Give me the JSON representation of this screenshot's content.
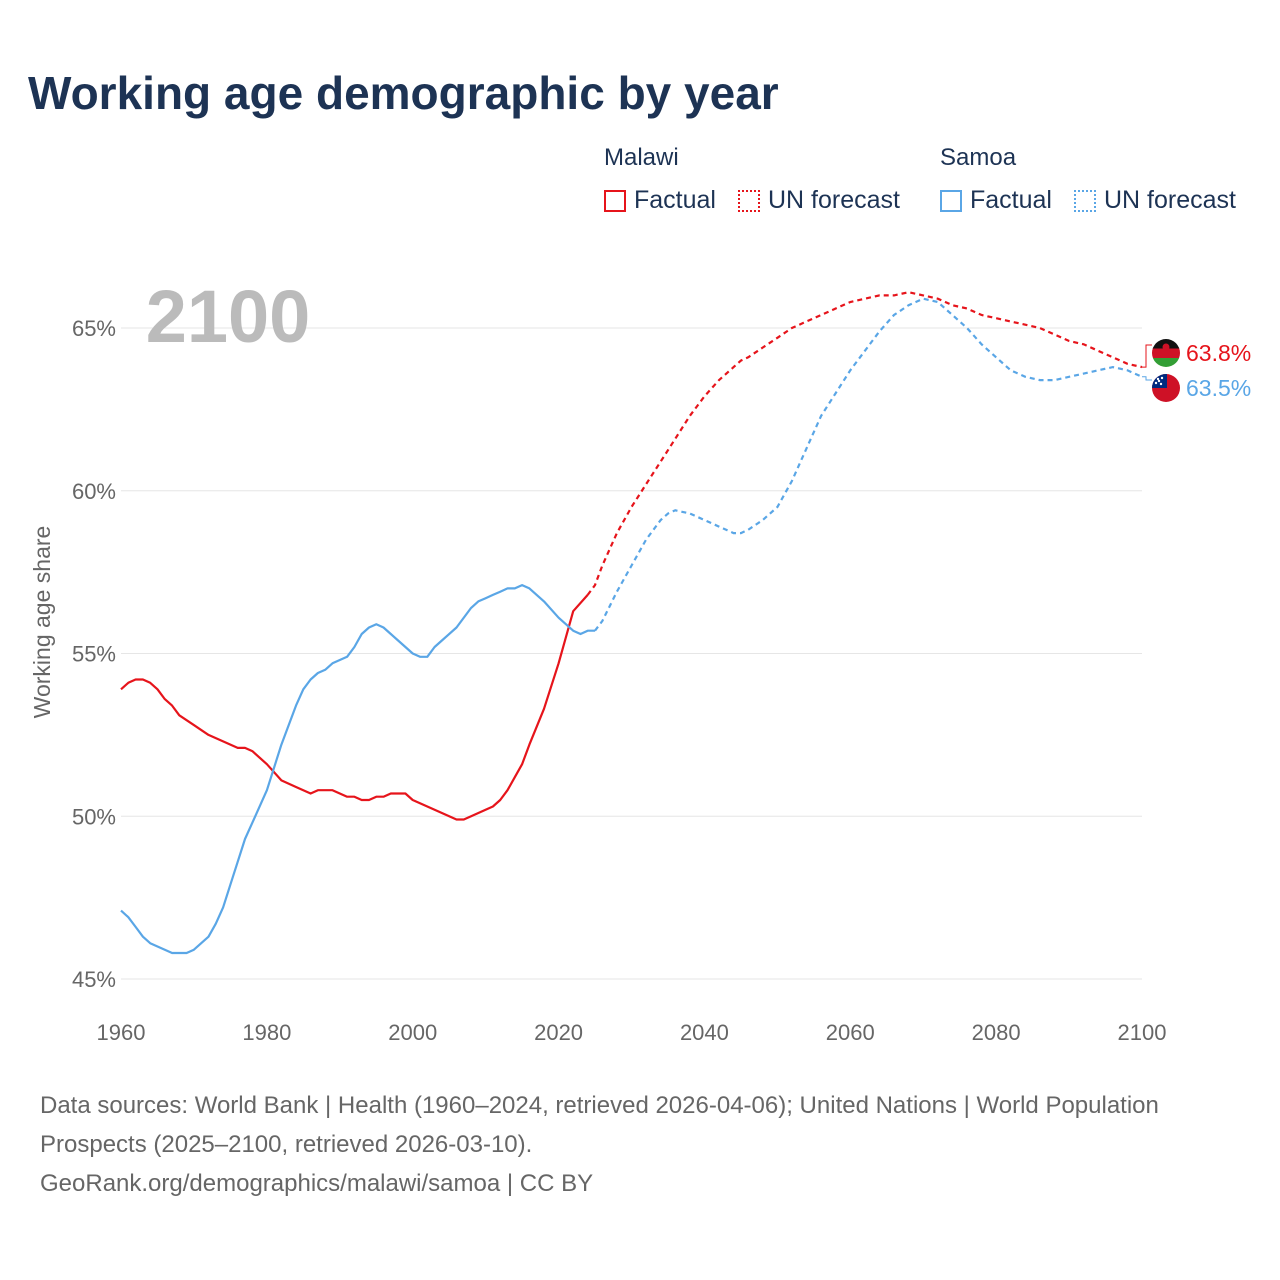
{
  "title": "Working age demographic by year",
  "legend": {
    "groups": [
      {
        "name": "Malawi",
        "color": "#e6141b",
        "factual_label": "Factual",
        "forecast_label": "UN forecast"
      },
      {
        "name": "Samoa",
        "color": "#5aa6e6",
        "factual_label": "Factual",
        "forecast_label": "UN forecast"
      }
    ]
  },
  "footer": {
    "sources": "Data sources: World Bank | Health (1960–2024, retrieved 2026-04-06); United Nations | World Population Prospects (2025–2100, retrieved 2026-03-10).",
    "link": "GeoRank.org/demographics/malawi/samoa | CC BY"
  },
  "chart_data": {
    "type": "line",
    "title": "Working age demographic by year",
    "year_watermark": "2100",
    "ylabel": "Working age share",
    "xlabel": "",
    "xlim": [
      1960,
      2100
    ],
    "ylim": [
      45,
      65
    ],
    "x_ticks": [
      "1960",
      "1980",
      "2000",
      "2020",
      "2040",
      "2060",
      "2080",
      "2100"
    ],
    "y_ticks": [
      "45%",
      "50%",
      "55%",
      "60%",
      "65%"
    ],
    "y_tick_values": [
      45,
      50,
      55,
      60,
      65
    ],
    "x_tick_values": [
      1960,
      1980,
      2000,
      2020,
      2040,
      2060,
      2080,
      2100
    ],
    "series": [
      {
        "name": "Malawi",
        "color": "#e6141b",
        "end_label": "63.8%",
        "flag_icon": "malawi-flag-icon",
        "factual": {
          "x": [
            1960,
            1961,
            1962,
            1963,
            1964,
            1965,
            1966,
            1967,
            1968,
            1970,
            1972,
            1974,
            1976,
            1977,
            1978,
            1980,
            1982,
            1984,
            1986,
            1987,
            1988,
            1989,
            1990,
            1991,
            1992,
            1993,
            1994,
            1995,
            1996,
            1997,
            1998,
            1999,
            2000,
            2002,
            2004,
            2006,
            2007,
            2008,
            2010,
            2011,
            2012,
            2013,
            2014,
            2015,
            2016,
            2018,
            2020,
            2022,
            2024
          ],
          "y": [
            53.9,
            54.1,
            54.2,
            54.2,
            54.1,
            53.9,
            53.6,
            53.4,
            53.1,
            52.8,
            52.5,
            52.3,
            52.1,
            52.1,
            52.0,
            51.6,
            51.1,
            50.9,
            50.7,
            50.8,
            50.8,
            50.8,
            50.7,
            50.6,
            50.6,
            50.5,
            50.5,
            50.6,
            50.6,
            50.7,
            50.7,
            50.7,
            50.5,
            50.3,
            50.1,
            49.9,
            49.9,
            50.0,
            50.2,
            50.3,
            50.5,
            50.8,
            51.2,
            51.6,
            52.2,
            53.3,
            54.7,
            56.3,
            56.8
          ]
        },
        "forecast": {
          "x": [
            2024,
            2025,
            2026,
            2028,
            2030,
            2032,
            2034,
            2036,
            2038,
            2040,
            2042,
            2044,
            2045,
            2046,
            2048,
            2050,
            2052,
            2054,
            2056,
            2058,
            2060,
            2062,
            2064,
            2066,
            2068,
            2070,
            2072,
            2074,
            2076,
            2078,
            2080,
            2082,
            2084,
            2086,
            2088,
            2090,
            2092,
            2094,
            2096,
            2098,
            2100
          ],
          "y": [
            56.8,
            57.1,
            57.7,
            58.7,
            59.5,
            60.2,
            60.9,
            61.6,
            62.3,
            62.9,
            63.4,
            63.8,
            64.0,
            64.1,
            64.4,
            64.7,
            65.0,
            65.2,
            65.4,
            65.6,
            65.8,
            65.9,
            66.0,
            66.0,
            66.1,
            66.0,
            65.9,
            65.7,
            65.6,
            65.4,
            65.3,
            65.2,
            65.1,
            65.0,
            64.8,
            64.6,
            64.5,
            64.3,
            64.1,
            63.9,
            63.8
          ]
        }
      },
      {
        "name": "Samoa",
        "color": "#5aa6e6",
        "end_label": "63.5%",
        "flag_icon": "samoa-flag-icon",
        "factual": {
          "x": [
            1960,
            1961,
            1962,
            1963,
            1964,
            1966,
            1967,
            1968,
            1969,
            1970,
            1971,
            1972,
            1973,
            1974,
            1975,
            1976,
            1977,
            1978,
            1980,
            1982,
            1984,
            1985,
            1986,
            1987,
            1988,
            1989,
            1990,
            1991,
            1992,
            1993,
            1994,
            1995,
            1996,
            1997,
            1998,
            1999,
            2000,
            2001,
            2002,
            2003,
            2004,
            2006,
            2008,
            2009,
            2010,
            2011,
            2012,
            2013,
            2014,
            2015,
            2016,
            2018,
            2020,
            2022,
            2023,
            2024,
            2025
          ],
          "y": [
            47.1,
            46.9,
            46.6,
            46.3,
            46.1,
            45.9,
            45.8,
            45.8,
            45.8,
            45.9,
            46.1,
            46.3,
            46.7,
            47.2,
            47.9,
            48.6,
            49.3,
            49.8,
            50.8,
            52.2,
            53.4,
            53.9,
            54.2,
            54.4,
            54.5,
            54.7,
            54.8,
            54.9,
            55.2,
            55.6,
            55.8,
            55.9,
            55.8,
            55.6,
            55.4,
            55.2,
            55.0,
            54.9,
            54.9,
            55.2,
            55.4,
            55.8,
            56.4,
            56.6,
            56.7,
            56.8,
            56.9,
            57.0,
            57.0,
            57.1,
            57.0,
            56.6,
            56.1,
            55.7,
            55.6,
            55.7,
            55.7
          ]
        },
        "forecast": {
          "x": [
            2025,
            2026,
            2028,
            2030,
            2032,
            2034,
            2035,
            2036,
            2038,
            2040,
            2042,
            2044,
            2045,
            2046,
            2048,
            2050,
            2052,
            2054,
            2056,
            2058,
            2060,
            2062,
            2064,
            2066,
            2068,
            2070,
            2072,
            2074,
            2076,
            2078,
            2080,
            2082,
            2084,
            2086,
            2088,
            2090,
            2092,
            2094,
            2096,
            2098,
            2100
          ],
          "y": [
            55.7,
            56.0,
            56.9,
            57.7,
            58.5,
            59.1,
            59.3,
            59.4,
            59.3,
            59.1,
            58.9,
            58.7,
            58.7,
            58.8,
            59.1,
            59.5,
            60.3,
            61.3,
            62.3,
            63.0,
            63.7,
            64.3,
            64.9,
            65.4,
            65.7,
            65.9,
            65.8,
            65.4,
            65.0,
            64.5,
            64.1,
            63.7,
            63.5,
            63.4,
            63.4,
            63.5,
            63.6,
            63.7,
            63.8,
            63.7,
            63.5
          ]
        }
      }
    ]
  }
}
